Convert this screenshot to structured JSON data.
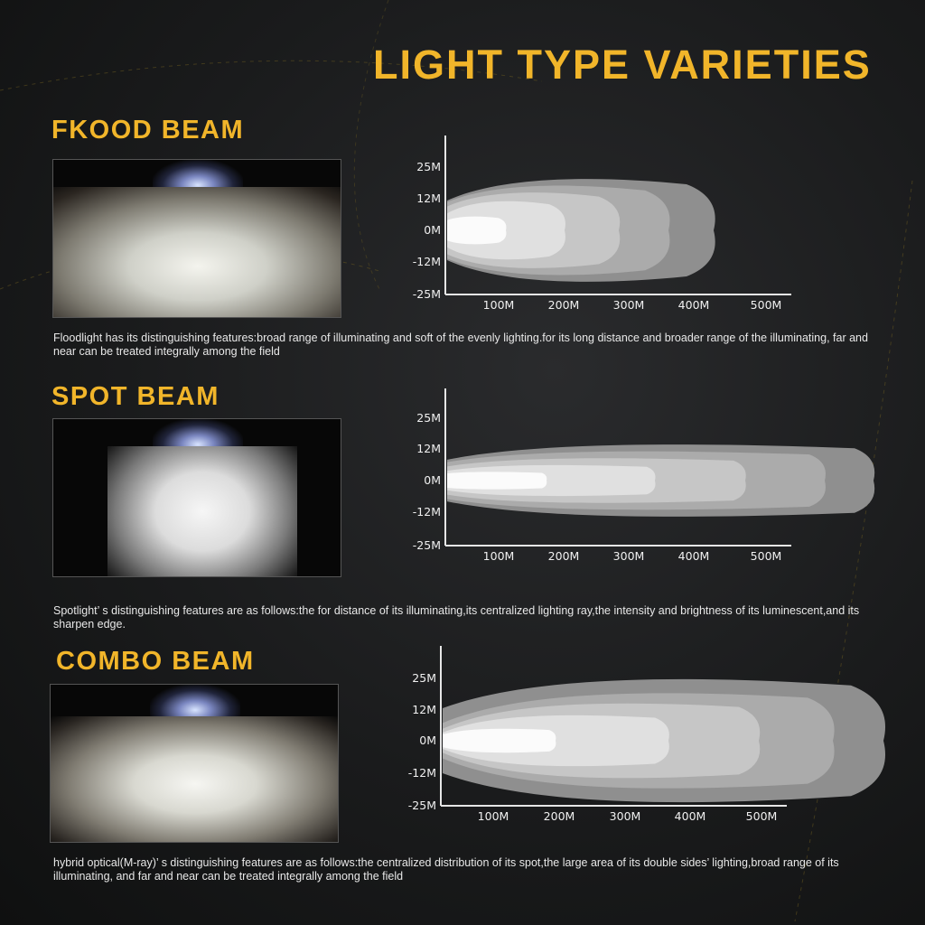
{
  "title": "LIGHT TYPE VARIETIES",
  "colors": {
    "accent": "#f1b52a",
    "background": "#1a1b1c",
    "text": "#e8e8e8"
  },
  "sections": [
    {
      "heading": "FKOOD BEAM",
      "description": "Floodlight has its distinguishing features:broad range of illuminating and soft of the evenly lighting.for its long distance and broader range of the illuminating, far and near can be treated integrally among the field",
      "y_ticks": [
        "25M",
        "12M",
        "0M",
        "-12M",
        "-25M"
      ],
      "x_ticks": [
        "100M",
        "200M",
        "300M",
        "400M",
        "500M"
      ]
    },
    {
      "heading": "SPOT BEAM",
      "description": "Spotlight’ s distinguishing features are as follows:the for distance of its illuminating,its centralized lighting ray,the intensity and brightness of its luminescent,and its sharpen edge.",
      "y_ticks": [
        "25M",
        "12M",
        "0M",
        "-12M",
        "-25M"
      ],
      "x_ticks": [
        "100M",
        "200M",
        "300M",
        "400M",
        "500M"
      ]
    },
    {
      "heading": "COMBO BEAM",
      "description": "hybrid optical(M-ray)’ s distinguishing features are as follows:the centralized distribution of its spot,the large area of its double sides’ lighting,broad range of its illuminating, and far and near can be treated integrally among the field",
      "y_ticks": [
        "25M",
        "12M",
        "0M",
        "-12M",
        "-25M"
      ],
      "x_ticks": [
        "100M",
        "200M",
        "300M",
        "400M",
        "500M"
      ]
    }
  ]
}
